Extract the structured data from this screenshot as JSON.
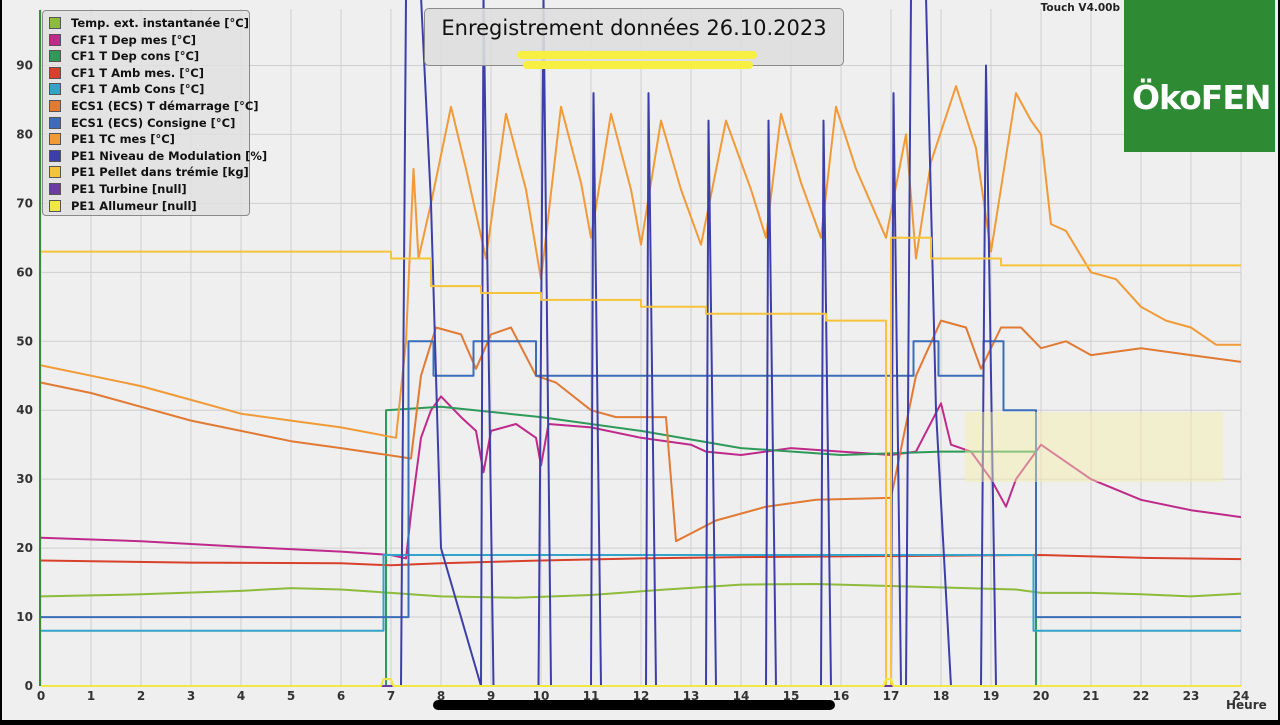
{
  "title": "Enregistrement données  26.10.2023",
  "version": "Touch V4.00b",
  "logo_text": "ÖkoFEN",
  "x_unit": "Heure",
  "colors": {
    "ext": "#8dbb3c",
    "dep_mes": "#bf2a8a",
    "dep_cons": "#2e9a5a",
    "amb_mes": "#d7412a",
    "amb_cons": "#33a3c9",
    "ecs_start": "#e07a34",
    "ecs_cons": "#3b6db8",
    "tc_mes": "#f09a38",
    "modulation": "#3c3fa8",
    "pellet": "#f5c43a",
    "turbine": "#6b3ba0",
    "allumeur": "#f2e845"
  },
  "legend": [
    {
      "key": "ext",
      "label": "Temp. ext. instantanée [°C]"
    },
    {
      "key": "dep_mes",
      "label": "CF1 T Dep mes [°C]"
    },
    {
      "key": "dep_cons",
      "label": "CF1 T Dep cons [°C]"
    },
    {
      "key": "amb_mes",
      "label": "CF1 T Amb mes. [°C]"
    },
    {
      "key": "amb_cons",
      "label": "CF1 T Amb Cons [°C]"
    },
    {
      "key": "ecs_start",
      "label": "ECS1 (ECS) T démarrage [°C]"
    },
    {
      "key": "ecs_cons",
      "label": "ECS1 (ECS) Consigne [°C]"
    },
    {
      "key": "tc_mes",
      "label": "PE1 TC mes [°C]"
    },
    {
      "key": "modulation",
      "label": "PE1 Niveau de Modulation [%]"
    },
    {
      "key": "pellet",
      "label": "PE1 Pellet dans trémie [kg]"
    },
    {
      "key": "turbine",
      "label": "PE1 Turbine [null]"
    },
    {
      "key": "allumeur",
      "label": "PE1 Allumeur [null]"
    }
  ],
  "chart_data": {
    "type": "line",
    "xlim": [
      0,
      24
    ],
    "ylim": [
      0,
      95
    ],
    "x_ticks": [
      0,
      1,
      2,
      3,
      4,
      5,
      6,
      7,
      8,
      9,
      10,
      11,
      12,
      13,
      14,
      15,
      16,
      17,
      18,
      19,
      20,
      21,
      22,
      23,
      24
    ],
    "y_ticks": [
      0,
      10,
      20,
      30,
      40,
      50,
      60,
      70,
      80,
      90
    ],
    "grid": true,
    "legend_position": "top-left",
    "series": [
      {
        "key": "ext",
        "name": "Temp. ext. instantanée [°C]",
        "points": [
          [
            0,
            13
          ],
          [
            2,
            13.3
          ],
          [
            4,
            13.8
          ],
          [
            5,
            14.2
          ],
          [
            6,
            14
          ],
          [
            7,
            13.5
          ],
          [
            8,
            13
          ],
          [
            9.5,
            12.8
          ],
          [
            11,
            13.2
          ],
          [
            12.5,
            14
          ],
          [
            14,
            14.7
          ],
          [
            15.5,
            14.8
          ],
          [
            17,
            14.5
          ],
          [
            18.5,
            14.2
          ],
          [
            19.5,
            14
          ],
          [
            20,
            13.5
          ],
          [
            21,
            13.5
          ],
          [
            22,
            13.3
          ],
          [
            23,
            13
          ],
          [
            24,
            13.4
          ]
        ]
      },
      {
        "key": "dep_mes",
        "name": "CF1 T Dep mes [°C]",
        "points": [
          [
            0,
            21.5
          ],
          [
            2,
            21
          ],
          [
            4,
            20.2
          ],
          [
            6,
            19.5
          ],
          [
            7,
            19
          ],
          [
            7.3,
            18.5
          ],
          [
            7.4,
            25
          ],
          [
            7.6,
            36
          ],
          [
            7.8,
            40
          ],
          [
            8,
            42
          ],
          [
            8.4,
            39
          ],
          [
            8.7,
            37
          ],
          [
            8.85,
            31
          ],
          [
            9,
            37
          ],
          [
            9.5,
            38
          ],
          [
            9.9,
            36
          ],
          [
            10,
            32
          ],
          [
            10.15,
            38
          ],
          [
            11,
            37.5
          ],
          [
            12,
            36
          ],
          [
            13,
            35
          ],
          [
            13.3,
            34
          ],
          [
            14,
            33.5
          ],
          [
            15,
            34.5
          ],
          [
            16,
            34
          ],
          [
            17,
            33.5
          ],
          [
            17.5,
            34
          ],
          [
            18,
            41
          ],
          [
            18.2,
            35
          ],
          [
            18.6,
            34
          ],
          [
            19,
            30
          ],
          [
            19.3,
            26
          ],
          [
            19.5,
            30
          ],
          [
            20,
            35
          ],
          [
            21,
            30
          ],
          [
            22,
            27
          ],
          [
            23,
            25.5
          ],
          [
            23.5,
            25
          ],
          [
            24,
            24.5
          ]
        ]
      },
      {
        "key": "dep_cons",
        "name": "CF1 T Dep cons [°C]",
        "points": [
          [
            0,
            0
          ],
          [
            6.9,
            0
          ],
          [
            6.9,
            40
          ],
          [
            8,
            40.5
          ],
          [
            10,
            39
          ],
          [
            12,
            37
          ],
          [
            14,
            34.5
          ],
          [
            16,
            33.5
          ],
          [
            18,
            34
          ],
          [
            19.9,
            34
          ],
          [
            19.9,
            0
          ],
          [
            24,
            0
          ]
        ]
      },
      {
        "key": "amb_mes",
        "name": "CF1 T Amb mes. [°C]",
        "points": [
          [
            0,
            18.2
          ],
          [
            3,
            17.9
          ],
          [
            6,
            17.8
          ],
          [
            7,
            17.5
          ],
          [
            8,
            17.8
          ],
          [
            10,
            18.2
          ],
          [
            12,
            18.5
          ],
          [
            14,
            18.7
          ],
          [
            16,
            18.8
          ],
          [
            18,
            18.9
          ],
          [
            20,
            19
          ],
          [
            22,
            18.6
          ],
          [
            24,
            18.4
          ]
        ]
      },
      {
        "key": "amb_cons",
        "name": "CF1 T Amb Cons [°C]",
        "points": [
          [
            0,
            8
          ],
          [
            6.85,
            8
          ],
          [
            6.85,
            19
          ],
          [
            19.85,
            19
          ],
          [
            19.85,
            8
          ],
          [
            24,
            8
          ]
        ]
      },
      {
        "key": "ecs_start",
        "name": "ECS1 (ECS) T démarrage [°C]",
        "points": [
          [
            0,
            44
          ],
          [
            1,
            42.5
          ],
          [
            2,
            40.5
          ],
          [
            3,
            38.5
          ],
          [
            4,
            37
          ],
          [
            5,
            35.5
          ],
          [
            6,
            34.5
          ],
          [
            7.4,
            33
          ],
          [
            7.6,
            45
          ],
          [
            7.9,
            52
          ],
          [
            8.4,
            51
          ],
          [
            8.7,
            46
          ],
          [
            9,
            51
          ],
          [
            9.4,
            52
          ],
          [
            9.9,
            45
          ],
          [
            10.3,
            44
          ],
          [
            11,
            40
          ],
          [
            11.5,
            39
          ],
          [
            12.5,
            39
          ],
          [
            12.7,
            21
          ],
          [
            13.5,
            24
          ],
          [
            14.5,
            26
          ],
          [
            15.5,
            27
          ],
          [
            16.5,
            27.2
          ],
          [
            17,
            27.3
          ],
          [
            17.5,
            45
          ],
          [
            18,
            53
          ],
          [
            18.5,
            52
          ],
          [
            18.8,
            46
          ],
          [
            19.2,
            52
          ],
          [
            19.6,
            52
          ],
          [
            20,
            49
          ],
          [
            20.5,
            50
          ],
          [
            21,
            48
          ],
          [
            22,
            49
          ],
          [
            23,
            48
          ],
          [
            24,
            47
          ]
        ]
      },
      {
        "key": "ecs_cons",
        "name": "ECS1 (ECS) Consigne [°C]",
        "points": [
          [
            0,
            10
          ],
          [
            7.35,
            10
          ],
          [
            7.35,
            50
          ],
          [
            7.85,
            50
          ],
          [
            7.85,
            45
          ],
          [
            8.65,
            45
          ],
          [
            8.65,
            50
          ],
          [
            9.9,
            50
          ],
          [
            9.9,
            45
          ],
          [
            17.45,
            45
          ],
          [
            17.45,
            50
          ],
          [
            17.95,
            50
          ],
          [
            17.95,
            45
          ],
          [
            18.85,
            45
          ],
          [
            18.85,
            50
          ],
          [
            19.25,
            50
          ],
          [
            19.25,
            40
          ],
          [
            19.9,
            40
          ],
          [
            19.9,
            10
          ],
          [
            24,
            10
          ]
        ]
      },
      {
        "key": "tc_mes",
        "name": "PE1 TC mes [°C]",
        "points": [
          [
            0,
            46.5
          ],
          [
            1,
            45
          ],
          [
            2,
            43.5
          ],
          [
            3,
            41.5
          ],
          [
            4,
            39.5
          ],
          [
            5,
            38.5
          ],
          [
            6,
            37.5
          ],
          [
            7.1,
            36
          ],
          [
            7.3,
            50
          ],
          [
            7.45,
            75
          ],
          [
            7.55,
            62
          ],
          [
            7.8,
            70
          ],
          [
            8.2,
            84
          ],
          [
            8.5,
            75
          ],
          [
            8.9,
            62
          ],
          [
            9.3,
            83
          ],
          [
            9.7,
            72
          ],
          [
            10,
            59
          ],
          [
            10.4,
            84
          ],
          [
            10.8,
            73
          ],
          [
            11,
            65
          ],
          [
            11.4,
            83
          ],
          [
            11.8,
            72
          ],
          [
            12,
            64
          ],
          [
            12.4,
            82
          ],
          [
            12.8,
            72
          ],
          [
            13.2,
            64
          ],
          [
            13.7,
            82
          ],
          [
            14.2,
            72
          ],
          [
            14.5,
            65
          ],
          [
            14.8,
            83
          ],
          [
            15.2,
            73
          ],
          [
            15.6,
            65
          ],
          [
            15.9,
            84
          ],
          [
            16.3,
            75
          ],
          [
            16.9,
            65
          ],
          [
            17.3,
            80
          ],
          [
            17.5,
            62
          ],
          [
            17.8,
            76
          ],
          [
            18.3,
            87
          ],
          [
            18.7,
            78
          ],
          [
            19,
            63
          ],
          [
            19.5,
            86
          ],
          [
            19.8,
            82
          ],
          [
            20,
            80
          ],
          [
            20.2,
            67
          ],
          [
            20.5,
            66
          ],
          [
            21,
            60
          ],
          [
            21.5,
            59
          ],
          [
            22,
            55
          ],
          [
            22.5,
            53
          ],
          [
            23,
            52
          ],
          [
            23.5,
            49.5
          ],
          [
            24,
            49.5
          ]
        ]
      },
      {
        "key": "modulation",
        "name": "PE1 Niveau de Modulation [%]",
        "points": [
          [
            0,
            0
          ],
          [
            7.2,
            0
          ],
          [
            7.3,
            100
          ],
          [
            7.6,
            100
          ],
          [
            7.8,
            70
          ],
          [
            8,
            20
          ],
          [
            8.8,
            0
          ],
          [
            8.85,
            100
          ],
          [
            9.05,
            0
          ],
          [
            9.95,
            0
          ],
          [
            10.05,
            100
          ],
          [
            10.2,
            0
          ],
          [
            11,
            0
          ],
          [
            11.05,
            86
          ],
          [
            11.2,
            0
          ],
          [
            12.1,
            0
          ],
          [
            12.15,
            86
          ],
          [
            12.3,
            0
          ],
          [
            13.3,
            0
          ],
          [
            13.35,
            82
          ],
          [
            13.5,
            0
          ],
          [
            14.5,
            0
          ],
          [
            14.55,
            82
          ],
          [
            14.7,
            0
          ],
          [
            15.6,
            0
          ],
          [
            15.65,
            82
          ],
          [
            15.8,
            0
          ],
          [
            17,
            0
          ],
          [
            17.05,
            86
          ],
          [
            17.2,
            0
          ],
          [
            17.3,
            0
          ],
          [
            17.4,
            100
          ],
          [
            17.7,
            100
          ],
          [
            17.9,
            40
          ],
          [
            18.2,
            0
          ],
          [
            18.8,
            0
          ],
          [
            18.9,
            90
          ],
          [
            19.1,
            0
          ],
          [
            19.5,
            0
          ],
          [
            20,
            0
          ],
          [
            24,
            0
          ]
        ]
      },
      {
        "key": "pellet",
        "name": "PE1 Pellet dans trémie [kg]",
        "points": [
          [
            0,
            63
          ],
          [
            7,
            63
          ],
          [
            7,
            62
          ],
          [
            7.8,
            62
          ],
          [
            7.8,
            58
          ],
          [
            8.8,
            58
          ],
          [
            8.8,
            57
          ],
          [
            10,
            57
          ],
          [
            10,
            56
          ],
          [
            12,
            56
          ],
          [
            12,
            55
          ],
          [
            13.3,
            55
          ],
          [
            13.3,
            54
          ],
          [
            15.7,
            54
          ],
          [
            15.7,
            53
          ],
          [
            16.9,
            53
          ],
          [
            16.9,
            0
          ],
          [
            17,
            0
          ],
          [
            17,
            65
          ],
          [
            17.8,
            65
          ],
          [
            17.8,
            62
          ],
          [
            19.2,
            62
          ],
          [
            19.2,
            61
          ],
          [
            24,
            61
          ]
        ]
      },
      {
        "key": "turbine",
        "name": "PE1 Turbine [null]",
        "points": [
          [
            0,
            0
          ],
          [
            24,
            0
          ]
        ]
      },
      {
        "key": "allumeur",
        "name": "PE1 Allumeur [null]",
        "points": [
          [
            0,
            0
          ],
          [
            6.8,
            0
          ],
          [
            6.85,
            1
          ],
          [
            7,
            1
          ],
          [
            7.05,
            0
          ],
          [
            16.85,
            0
          ],
          [
            16.9,
            1
          ],
          [
            17,
            1
          ],
          [
            17.05,
            0
          ],
          [
            24,
            0
          ]
        ]
      }
    ]
  }
}
